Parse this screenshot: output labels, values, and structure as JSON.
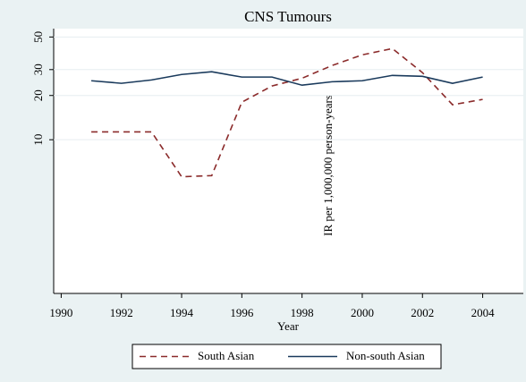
{
  "chart_data": {
    "type": "line",
    "title": "CNS Tumours",
    "x_label": "Year",
    "y_label": "IR per 1,000,000 person-years",
    "x": [
      1991,
      1992,
      1993,
      1994,
      1995,
      1996,
      1997,
      1998,
      1999,
      2000,
      2001,
      2002,
      2003,
      2004
    ],
    "series": [
      {
        "name": "South Asian",
        "color": "#8b2b2b",
        "dash": true,
        "values": [
          11.3,
          11.3,
          11.3,
          5.6,
          5.7,
          18,
          23.2,
          26.2,
          32,
          37.8,
          41.7,
          28.6,
          17.3,
          18.8
        ]
      },
      {
        "name": "Non-south Asian",
        "color": "#1a3a5c",
        "dash": false,
        "values": [
          25.2,
          24.2,
          25.5,
          27.8,
          29,
          26.7,
          26.7,
          23.5,
          24.8,
          25.2,
          27.4,
          27,
          24.2,
          26.7
        ]
      }
    ],
    "xlim": [
      1989.75,
      2005.35
    ],
    "xticks": [
      1990,
      1992,
      1994,
      1996,
      1998,
      2000,
      2002,
      2004
    ],
    "ylim": [
      0.9,
      57
    ],
    "yticks": [
      10,
      20,
      30,
      50
    ],
    "log_y": true,
    "grid": true,
    "legend": "bottom"
  }
}
